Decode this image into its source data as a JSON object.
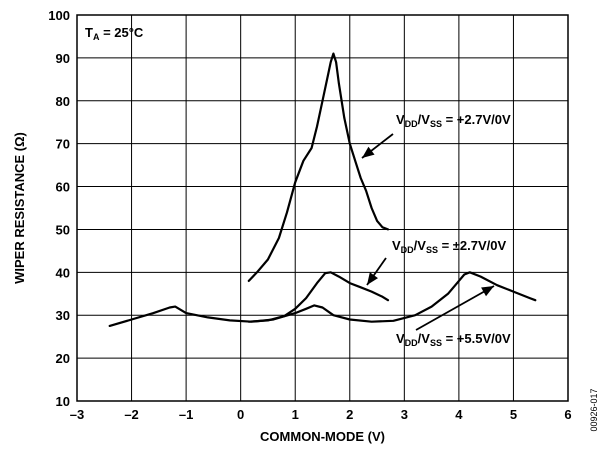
{
  "chart_data": {
    "type": "line",
    "xlabel": "COMMON-MODE (V)",
    "ylabel": "WIPER RESISTANCE (Ω)",
    "xlim": [
      -3,
      6
    ],
    "ylim": [
      10,
      100
    ],
    "x_ticks": [
      -3,
      -2,
      -1,
      0,
      1,
      2,
      3,
      4,
      5,
      6
    ],
    "y_ticks": [
      10,
      20,
      30,
      40,
      50,
      60,
      70,
      80,
      90,
      100
    ],
    "x_tick_labels": [
      "–3",
      "–2",
      "–1",
      "0",
      "1",
      "2",
      "3",
      "4",
      "5",
      "6"
    ],
    "y_tick_labels": [
      "10",
      "20",
      "30",
      "40",
      "50",
      "60",
      "70",
      "80",
      "90",
      "100"
    ],
    "grid": true,
    "condition": {
      "main": "T",
      "sub": "A",
      "rest": " = 25°C"
    },
    "figure_id": "00926-017",
    "series": [
      {
        "name": "VDD/VSS = +2.7V/0V",
        "label_parts": [
          "V",
          "DD",
          "/V",
          "SS",
          " = +2.7V/0V"
        ],
        "x": [
          0.15,
          0.3,
          0.5,
          0.7,
          0.85,
          1.0,
          1.15,
          1.3,
          1.4,
          1.5,
          1.6,
          1.65,
          1.7,
          1.75,
          1.8,
          1.9,
          2.0,
          2.1,
          2.2,
          2.3,
          2.4,
          2.5,
          2.6,
          2.7
        ],
        "y": [
          38,
          40,
          43,
          48,
          54,
          61,
          66,
          69,
          74,
          80,
          86,
          89,
          91,
          89,
          84,
          76,
          70,
          66,
          62,
          59,
          55,
          52,
          50.5,
          50
        ]
      },
      {
        "name": "VDD/VSS = ±2.7V/0V",
        "label_parts": [
          "V",
          "DD",
          "/V",
          "SS",
          " = ±2.7V/0V"
        ],
        "x": [
          0.15,
          0.5,
          0.8,
          1.0,
          1.2,
          1.4,
          1.55,
          1.65,
          1.8,
          2.0,
          2.2,
          2.4,
          2.6,
          2.7
        ],
        "y": [
          28.5,
          28.8,
          29.8,
          31.5,
          34,
          37.5,
          39.8,
          40,
          39,
          37.5,
          36.5,
          35.5,
          34.3,
          33.5
        ]
      },
      {
        "name": "VDD/VSS = +5.5V/0V",
        "label_parts": [
          "V",
          "DD",
          "/V",
          "SS",
          " = +5.5V/0V"
        ],
        "x": [
          -2.4,
          -2.0,
          -1.6,
          -1.3,
          -1.2,
          -1.0,
          -0.6,
          -0.2,
          0.2,
          0.6,
          1.0,
          1.2,
          1.35,
          1.5,
          1.7,
          2.0,
          2.4,
          2.8,
          3.2,
          3.5,
          3.8,
          4.0,
          4.1,
          4.2,
          4.4,
          4.7,
          5.0,
          5.3,
          5.4
        ],
        "y": [
          27.5,
          29,
          30.5,
          31.8,
          32,
          30.5,
          29.5,
          28.8,
          28.5,
          29,
          30.5,
          31.5,
          32.3,
          31.8,
          30,
          29,
          28.5,
          28.7,
          30,
          32,
          35,
          38,
          39.5,
          40,
          39,
          37,
          35.5,
          34,
          33.5
        ]
      }
    ]
  }
}
